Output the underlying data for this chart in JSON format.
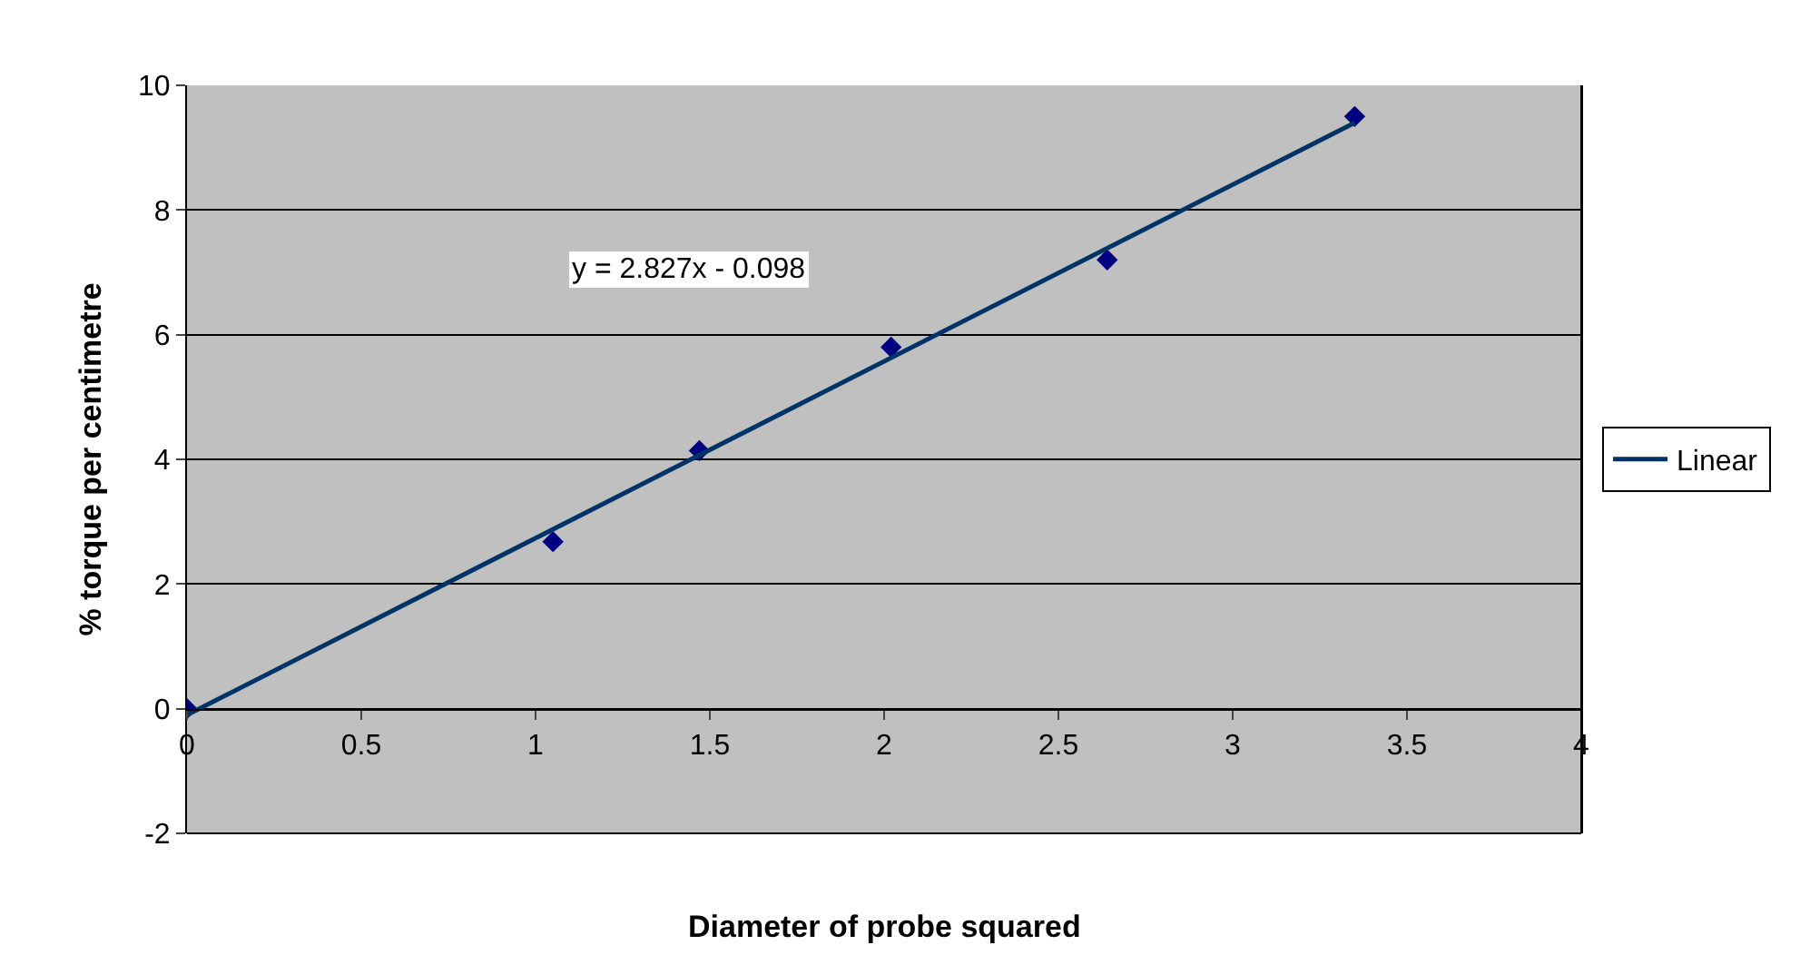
{
  "chart_data": {
    "type": "scatter",
    "xlabel": "Diameter of probe squared",
    "ylabel": "% torque per centimetre",
    "series": [
      {
        "color": "#000080",
        "marker": "diamond",
        "x": [
          0,
          1.05,
          1.47,
          2.02,
          2.64,
          3.35
        ],
        "values": [
          0,
          2.68,
          4.14,
          5.8,
          7.2,
          9.5
        ]
      },
      {
        "type": "line",
        "name": "Linear",
        "color": "#003366",
        "marker": "none",
        "line_style": "solid",
        "x": [
          0,
          3.35
        ],
        "values": [
          -0.1,
          9.4
        ]
      }
    ],
    "annotations": [
      "y = 2.827x - 0.098"
    ],
    "xlim": [
      0,
      4
    ],
    "xticks": [
      0,
      0.5,
      1,
      1.5,
      2,
      2.5,
      3,
      3.5,
      4
    ],
    "ylim": [
      -2,
      10
    ],
    "yticks": [
      -2,
      0,
      2,
      4,
      6,
      8,
      10
    ],
    "grid": "y",
    "legend": "right"
  }
}
